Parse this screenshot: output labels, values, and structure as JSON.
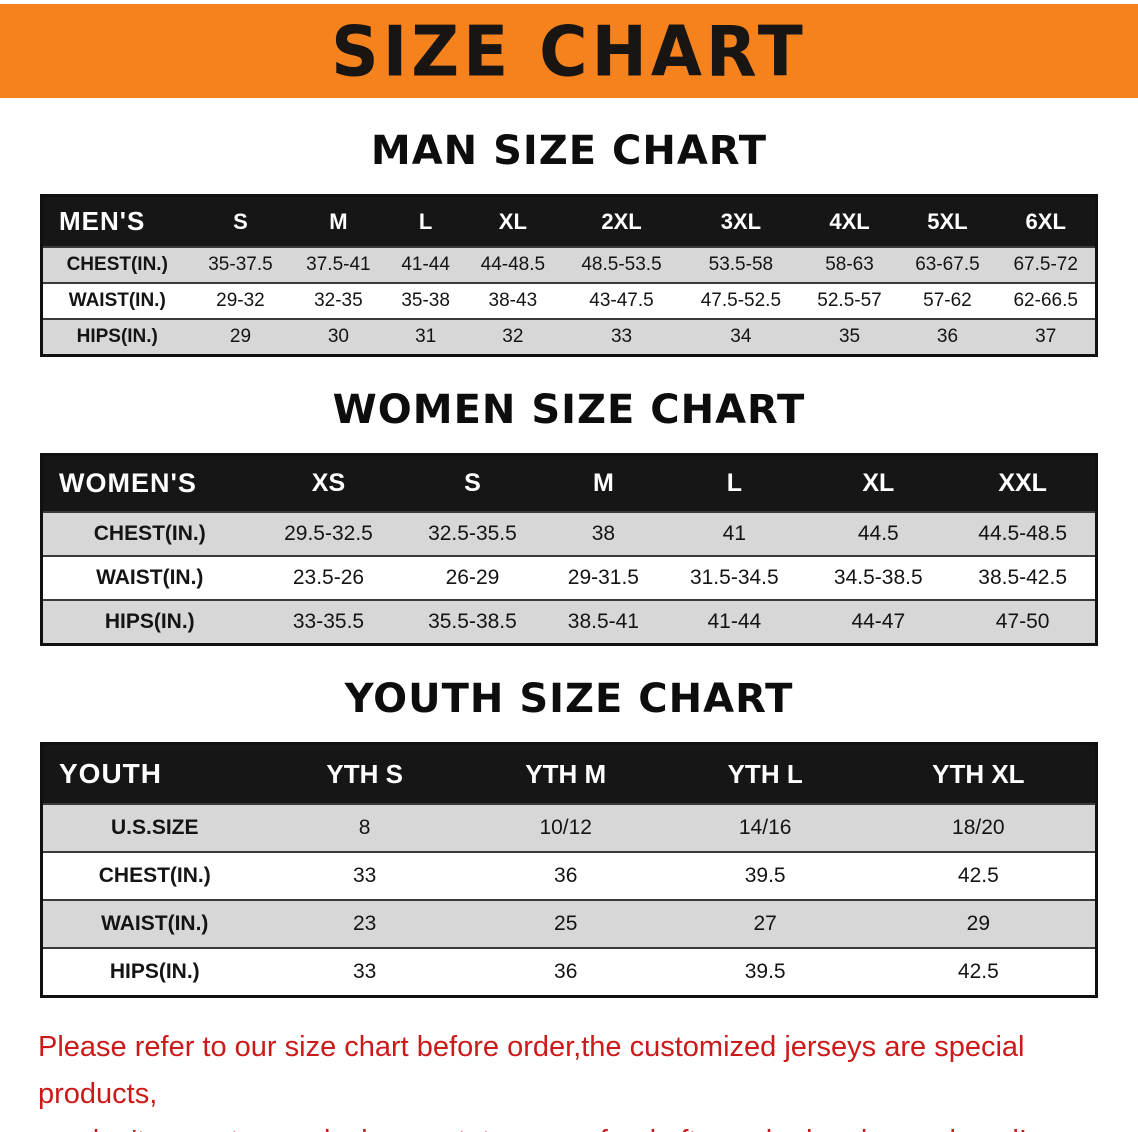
{
  "banner": {
    "title": "SIZE CHART"
  },
  "sections": [
    {
      "heading": "MAN SIZE CHART",
      "table": {
        "header": [
          "MEN'S",
          "S",
          "M",
          "L",
          "XL",
          "2XL",
          "3XL",
          "4XL",
          "5XL",
          "6XL"
        ],
        "rows": [
          [
            "CHEST(IN.)",
            "35-37.5",
            "37.5-41",
            "41-44",
            "44-48.5",
            "48.5-53.5",
            "53.5-58",
            "58-63",
            "63-67.5",
            "67.5-72"
          ],
          [
            "WAIST(IN.)",
            "29-32",
            "32-35",
            "35-38",
            "38-43",
            "43-47.5",
            "47.5-52.5",
            "52.5-57",
            "57-62",
            "62-66.5"
          ],
          [
            "HIPS(IN.)",
            "29",
            "30",
            "31",
            "32",
            "33",
            "34",
            "35",
            "36",
            "37"
          ]
        ]
      }
    },
    {
      "heading": "WOMEN SIZE CHART",
      "table": {
        "header": [
          "WOMEN'S",
          "XS",
          "S",
          "M",
          "L",
          "XL",
          "XXL"
        ],
        "rows": [
          [
            "CHEST(IN.)",
            "29.5-32.5",
            "32.5-35.5",
            "38",
            "41",
            "44.5",
            "44.5-48.5"
          ],
          [
            "WAIST(IN.)",
            "23.5-26",
            "26-29",
            "29-31.5",
            "31.5-34.5",
            "34.5-38.5",
            "38.5-42.5"
          ],
          [
            "HIPS(IN.)",
            "33-35.5",
            "35.5-38.5",
            "38.5-41",
            "41-44",
            "44-47",
            "47-50"
          ]
        ]
      }
    },
    {
      "heading": "YOUTH SIZE CHART",
      "table": {
        "header": [
          "YOUTH",
          "YTH S",
          "YTH M",
          "YTH L",
          "YTH XL"
        ],
        "rows": [
          [
            "U.S.SIZE",
            "8",
            "10/12",
            "14/16",
            "18/20"
          ],
          [
            "CHEST(IN.)",
            "33",
            "36",
            "39.5",
            "42.5"
          ],
          [
            "WAIST(IN.)",
            "23",
            "25",
            "27",
            "29"
          ],
          [
            "HIPS(IN.)",
            "33",
            "36",
            "39.5",
            "42.5"
          ]
        ]
      }
    }
  ],
  "footer": {
    "line1": "Please refer to our size chart before order,the customized jerseys are special products,",
    "line2": "we don't accept cancel, change, teturn or refund after order has been placed!"
  },
  "colors": {
    "banner_bg": "#F6821E",
    "header_bg": "#161616",
    "row_gray": "#D7D7D7",
    "footer_red": "#CC1A1A"
  }
}
